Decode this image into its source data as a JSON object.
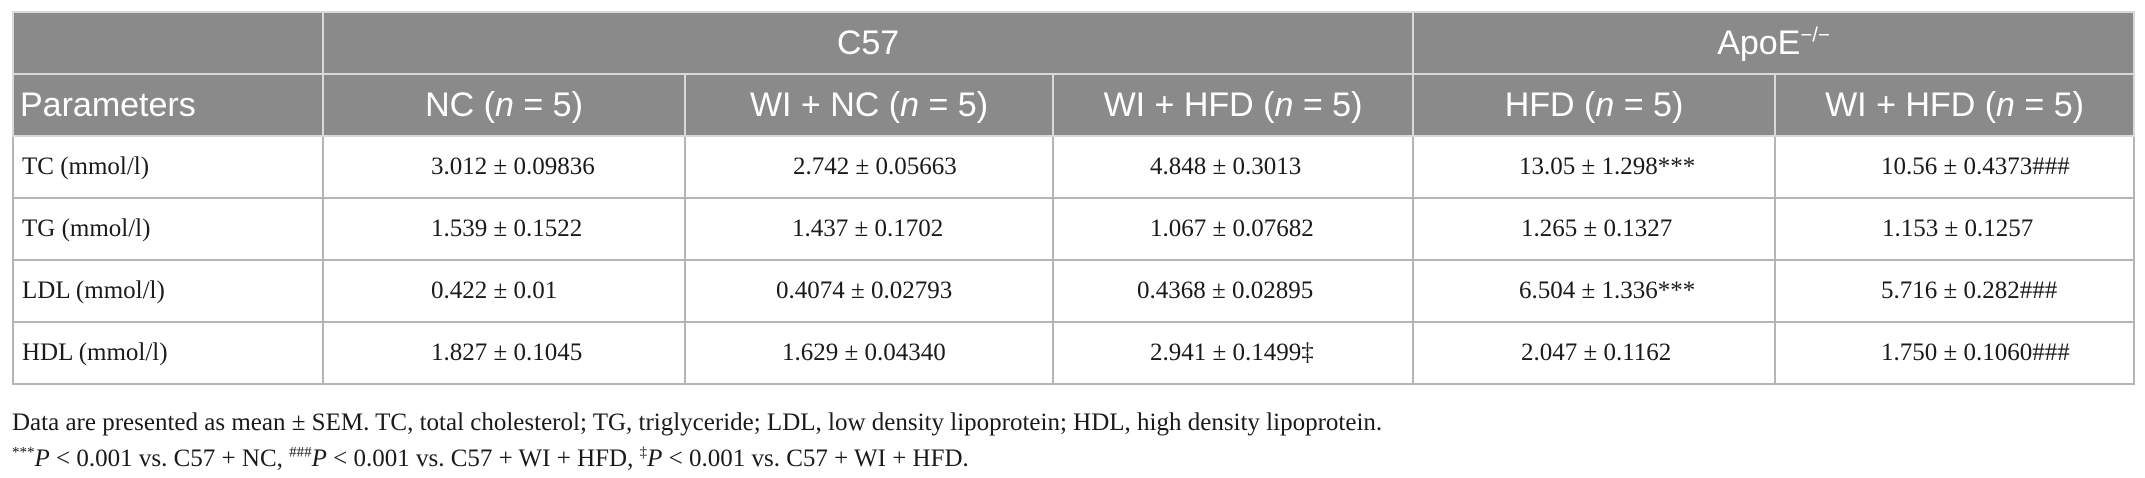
{
  "table": {
    "group_headers": {
      "c57": "C57",
      "apoe_base": "ApoE",
      "apoe_sup": "−/−"
    },
    "column_headers": {
      "parameters": "Parameters",
      "cols": [
        {
          "pre": "NC (",
          "n": "n",
          "post": " = 5)"
        },
        {
          "pre": "WI + NC (",
          "n": "n",
          "post": " = 5)"
        },
        {
          "pre": "WI + HFD (",
          "n": "n",
          "post": " = 5)"
        },
        {
          "pre": "HFD (",
          "n": "n",
          "post": " = 5)"
        },
        {
          "pre": "WI + HFD (",
          "n": "n",
          "post": " = 5)"
        }
      ]
    },
    "rows": [
      {
        "label": "TC (mmol/l)",
        "cells": [
          "3.012 ± 0.09836",
          "2.742 ± 0.05663",
          "4.848 ± 0.3013",
          "13.05 ± 1.298***",
          "10.56 ± 0.4373###"
        ]
      },
      {
        "label": "TG (mmol/l)",
        "cells": [
          "1.539 ± 0.1522",
          "1.437 ± 0.1702",
          "1.067 ± 0.07682",
          "1.265 ± 0.1327",
          "1.153 ± 0.1257"
        ]
      },
      {
        "label": "LDL (mmol/l)",
        "cells": [
          "0.422 ± 0.01",
          "0.4074 ± 0.02793",
          "0.4368 ± 0.02895",
          "6.504 ± 1.336***",
          "5.716 ± 0.282###"
        ]
      },
      {
        "label": "HDL (mmol/l)",
        "cells": [
          "1.827 ± 0.1045",
          "1.629 ± 0.04340",
          "2.941 ± 0.1499‡",
          "2.047 ± 0.1162",
          "1.750 ± 0.1060###"
        ]
      }
    ]
  },
  "notes": {
    "line1": "Data are presented as mean ± SEM. TC, total cholesterol; TG, triglyceride; LDL, low density lipoprotein; HDL, high density lipoprotein.",
    "line2": {
      "sup1": "***",
      "p1": "P",
      "t1": " < 0.001 vs. C57 + NC, ",
      "sup2": "###",
      "p2": "P",
      "t2": " < 0.001 vs. C57 + WI + HFD, ",
      "sup3": "‡",
      "p3": "P",
      "t3": " < 0.001 vs. C57 + WI + HFD."
    }
  }
}
